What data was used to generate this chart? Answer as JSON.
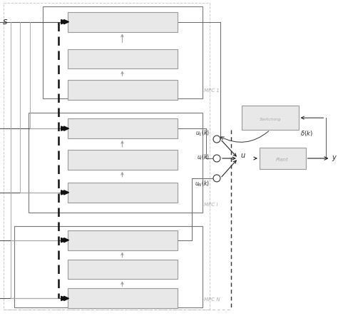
{
  "bg_color": "#ffffff",
  "box_fill": "#e0e0e0",
  "box_fill_light": "#e8e8e8",
  "box_edge": "#999999",
  "dark_edge": "#444444",
  "arrow_color": "#222222",
  "dashed_color": "#333333",
  "light_dashed": "#aaaaaa",
  "text_color": "#222222",
  "label_color": "#aaaaaa",
  "mpc1_label": "MPC 1",
  "mpc2_label": "MPC i",
  "mpc3_label": "MPC N",
  "fig_width": 4.74,
  "fig_height": 4.43
}
